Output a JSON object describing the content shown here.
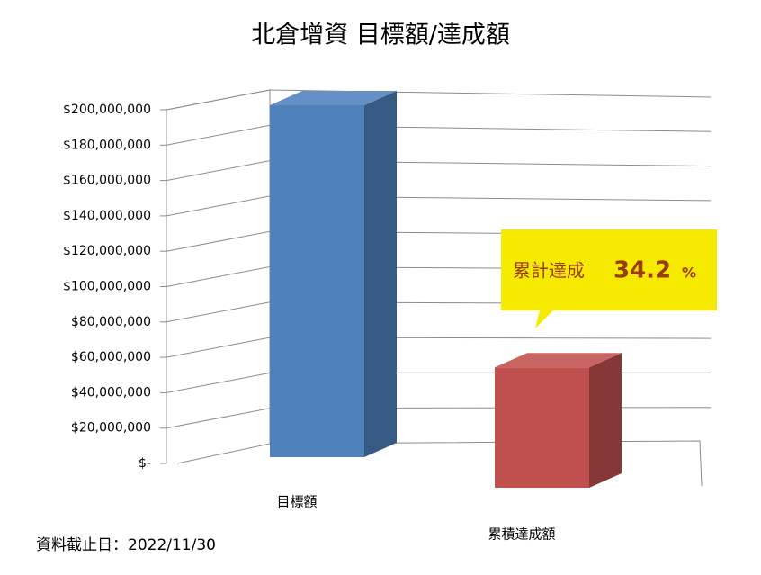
{
  "chart_data": {
    "type": "bar3d",
    "title": "北倉增資 目標額/達成額",
    "categories": [
      "目標額",
      "累積達成額"
    ],
    "values": [
      200000000,
      68400000
    ],
    "colors": [
      "#4f81bd",
      "#c0504d"
    ],
    "ylim": [
      0,
      200000000
    ],
    "yticks": [
      {
        "value": 0,
        "label": "$-"
      },
      {
        "value": 20000000,
        "label": "$20,000,000"
      },
      {
        "value": 40000000,
        "label": "$40,000,000"
      },
      {
        "value": 60000000,
        "label": "$60,000,000"
      },
      {
        "value": 80000000,
        "label": "$80,000,000"
      },
      {
        "value": 100000000,
        "label": "$100,000,000"
      },
      {
        "value": 120000000,
        "label": "$120,000,000"
      },
      {
        "value": 140000000,
        "label": "$140,000,000"
      },
      {
        "value": 160000000,
        "label": "$160,000,000"
      },
      {
        "value": 180000000,
        "label": "$180,000,000"
      },
      {
        "value": 200000000,
        "label": "$200,000,000"
      }
    ],
    "grid": true,
    "annotation": {
      "prefix": "累計達成",
      "value": 34.2,
      "unit": "%"
    },
    "footnote": "資料截止日：2022/11/30"
  }
}
